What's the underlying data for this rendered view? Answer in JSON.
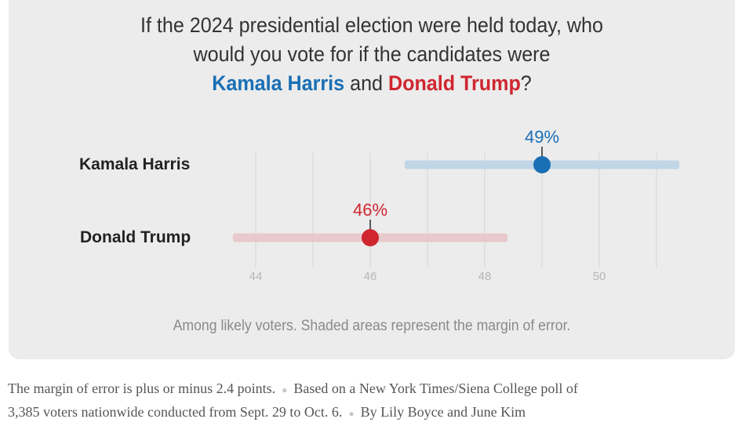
{
  "title": {
    "line1": "If the 2024 presidential election were held today, who",
    "line2": "would you vote for if the candidates were",
    "candidate_a": "Kamala Harris",
    "conjunction": " and ",
    "candidate_b": "Donald Trump",
    "end": "?"
  },
  "colors": {
    "harris": "#1a6fb5",
    "harris_moe": "#bcd3e6",
    "trump": "#d0262f",
    "trump_moe": "#e9c5c8",
    "grid": "#d8d8d8",
    "tick": "#b5b5b5"
  },
  "chart_data": {
    "type": "dot-range",
    "title": "If the 2024 presidential election were held today, who would you vote for if the candidates were Kamala Harris and Donald Trump?",
    "xlabel": "",
    "ylabel": "",
    "xlim": [
      44,
      51
    ],
    "ticks": [
      44,
      46,
      48,
      50
    ],
    "gridlines": [
      44,
      45,
      46,
      47,
      48,
      49,
      50,
      51
    ],
    "margin_of_error": 2.4,
    "series": [
      {
        "name": "Kamala Harris",
        "value": 49,
        "label": "49%",
        "low": 46.6,
        "high": 51.4,
        "color": "#1a6fb5"
      },
      {
        "name": "Donald Trump",
        "value": 46,
        "label": "46%",
        "low": 43.6,
        "high": 48.4,
        "color": "#d0262f"
      }
    ],
    "note": "Among likely voters. Shaded areas represent the margin of error."
  },
  "footer": {
    "moe_text": "The margin of error is plus or minus 2.4 points.",
    "source_text_1": "Based on a New York Times/Siena College poll of",
    "source_text_2": "3,385 voters nationwide conducted from Sept. 29 to Oct. 6.",
    "byline": "By Lily Boyce and June Kim"
  }
}
